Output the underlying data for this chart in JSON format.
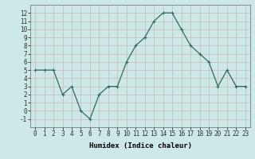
{
  "x": [
    0,
    1,
    2,
    3,
    4,
    5,
    6,
    7,
    8,
    9,
    10,
    11,
    12,
    13,
    14,
    15,
    16,
    17,
    18,
    19,
    20,
    21,
    22,
    23
  ],
  "y": [
    5,
    5,
    5,
    2,
    3,
    0,
    -1,
    2,
    3,
    3,
    6,
    8,
    9,
    11,
    12,
    12,
    10,
    8,
    7,
    6,
    3,
    5,
    3,
    3
  ],
  "line_color": "#2e6b5e",
  "marker": "+",
  "marker_size": 3,
  "marker_linewidth": 0.8,
  "bg_color": "#cde8e8",
  "grid_color_major": "#c8b8b8",
  "grid_color_minor": "#ddd0d0",
  "xlabel": "Humidex (Indice chaleur)",
  "xlim": [
    -0.5,
    23.5
  ],
  "ylim": [
    -2,
    13
  ],
  "yticks": [
    -1,
    0,
    1,
    2,
    3,
    4,
    5,
    6,
    7,
    8,
    9,
    10,
    11,
    12
  ],
  "xticks": [
    0,
    1,
    2,
    3,
    4,
    5,
    6,
    7,
    8,
    9,
    10,
    11,
    12,
    13,
    14,
    15,
    16,
    17,
    18,
    19,
    20,
    21,
    22,
    23
  ],
  "xlabel_fontsize": 6.5,
  "tick_fontsize": 5.5,
  "line_width": 0.9
}
